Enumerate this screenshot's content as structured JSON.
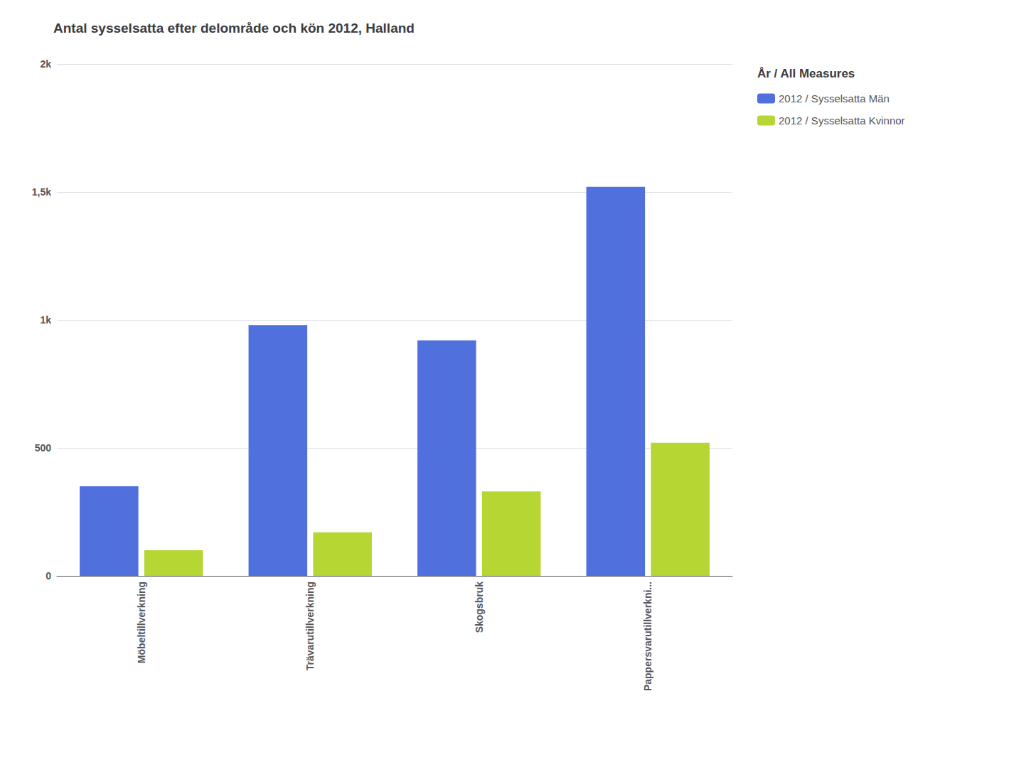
{
  "chart_data": {
    "type": "bar",
    "title": "Antal sysselsatta efter delområde och kön 2012, Halland",
    "categories": [
      "Möbeltillverkning",
      "Trävarutillverkning",
      "Skogsbruk",
      "Pappersvarutillverkni..."
    ],
    "series": [
      {
        "name": "2012 / Sysselsatta Män",
        "values": [
          350,
          980,
          920,
          1520
        ]
      },
      {
        "name": "2012 / Sysselsatta Kvinnor",
        "values": [
          100,
          170,
          330,
          520
        ]
      }
    ],
    "legend_title": "År / All Measures",
    "ylim": [
      0,
      2000
    ],
    "yticks": [
      0,
      500,
      {
        "value": 1000,
        "label": "1k"
      },
      {
        "value": 1500,
        "label": "1,5k"
      },
      {
        "value": 2000,
        "label": "2k"
      }
    ],
    "grid": true,
    "legend": "right"
  }
}
